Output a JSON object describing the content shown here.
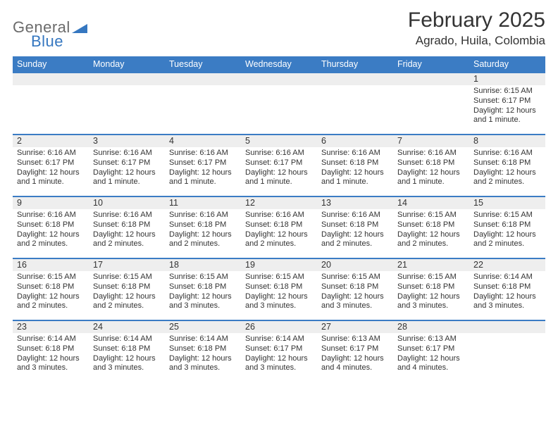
{
  "logo": {
    "word1": "General",
    "word2": "Blue"
  },
  "title": "February 2025",
  "location": "Agrado, Huila, Colombia",
  "colors": {
    "header_bg": "#3b7cc4",
    "header_text": "#ffffff",
    "daynum_bg": "#eeeeee",
    "row_border": "#3b7cc4",
    "logo_gray": "#6b6b6b",
    "logo_blue": "#3577c0",
    "body_text": "#333333",
    "page_bg": "#ffffff"
  },
  "weekdays": [
    "Sunday",
    "Monday",
    "Tuesday",
    "Wednesday",
    "Thursday",
    "Friday",
    "Saturday"
  ],
  "weeks": [
    [
      null,
      null,
      null,
      null,
      null,
      null,
      {
        "n": "1",
        "sunrise": "Sunrise: 6:15 AM",
        "sunset": "Sunset: 6:17 PM",
        "daylight1": "Daylight: 12 hours",
        "daylight2": "and 1 minute."
      }
    ],
    [
      {
        "n": "2",
        "sunrise": "Sunrise: 6:16 AM",
        "sunset": "Sunset: 6:17 PM",
        "daylight1": "Daylight: 12 hours",
        "daylight2": "and 1 minute."
      },
      {
        "n": "3",
        "sunrise": "Sunrise: 6:16 AM",
        "sunset": "Sunset: 6:17 PM",
        "daylight1": "Daylight: 12 hours",
        "daylight2": "and 1 minute."
      },
      {
        "n": "4",
        "sunrise": "Sunrise: 6:16 AM",
        "sunset": "Sunset: 6:17 PM",
        "daylight1": "Daylight: 12 hours",
        "daylight2": "and 1 minute."
      },
      {
        "n": "5",
        "sunrise": "Sunrise: 6:16 AM",
        "sunset": "Sunset: 6:17 PM",
        "daylight1": "Daylight: 12 hours",
        "daylight2": "and 1 minute."
      },
      {
        "n": "6",
        "sunrise": "Sunrise: 6:16 AM",
        "sunset": "Sunset: 6:18 PM",
        "daylight1": "Daylight: 12 hours",
        "daylight2": "and 1 minute."
      },
      {
        "n": "7",
        "sunrise": "Sunrise: 6:16 AM",
        "sunset": "Sunset: 6:18 PM",
        "daylight1": "Daylight: 12 hours",
        "daylight2": "and 1 minute."
      },
      {
        "n": "8",
        "sunrise": "Sunrise: 6:16 AM",
        "sunset": "Sunset: 6:18 PM",
        "daylight1": "Daylight: 12 hours",
        "daylight2": "and 2 minutes."
      }
    ],
    [
      {
        "n": "9",
        "sunrise": "Sunrise: 6:16 AM",
        "sunset": "Sunset: 6:18 PM",
        "daylight1": "Daylight: 12 hours",
        "daylight2": "and 2 minutes."
      },
      {
        "n": "10",
        "sunrise": "Sunrise: 6:16 AM",
        "sunset": "Sunset: 6:18 PM",
        "daylight1": "Daylight: 12 hours",
        "daylight2": "and 2 minutes."
      },
      {
        "n": "11",
        "sunrise": "Sunrise: 6:16 AM",
        "sunset": "Sunset: 6:18 PM",
        "daylight1": "Daylight: 12 hours",
        "daylight2": "and 2 minutes."
      },
      {
        "n": "12",
        "sunrise": "Sunrise: 6:16 AM",
        "sunset": "Sunset: 6:18 PM",
        "daylight1": "Daylight: 12 hours",
        "daylight2": "and 2 minutes."
      },
      {
        "n": "13",
        "sunrise": "Sunrise: 6:16 AM",
        "sunset": "Sunset: 6:18 PM",
        "daylight1": "Daylight: 12 hours",
        "daylight2": "and 2 minutes."
      },
      {
        "n": "14",
        "sunrise": "Sunrise: 6:15 AM",
        "sunset": "Sunset: 6:18 PM",
        "daylight1": "Daylight: 12 hours",
        "daylight2": "and 2 minutes."
      },
      {
        "n": "15",
        "sunrise": "Sunrise: 6:15 AM",
        "sunset": "Sunset: 6:18 PM",
        "daylight1": "Daylight: 12 hours",
        "daylight2": "and 2 minutes."
      }
    ],
    [
      {
        "n": "16",
        "sunrise": "Sunrise: 6:15 AM",
        "sunset": "Sunset: 6:18 PM",
        "daylight1": "Daylight: 12 hours",
        "daylight2": "and 2 minutes."
      },
      {
        "n": "17",
        "sunrise": "Sunrise: 6:15 AM",
        "sunset": "Sunset: 6:18 PM",
        "daylight1": "Daylight: 12 hours",
        "daylight2": "and 2 minutes."
      },
      {
        "n": "18",
        "sunrise": "Sunrise: 6:15 AM",
        "sunset": "Sunset: 6:18 PM",
        "daylight1": "Daylight: 12 hours",
        "daylight2": "and 3 minutes."
      },
      {
        "n": "19",
        "sunrise": "Sunrise: 6:15 AM",
        "sunset": "Sunset: 6:18 PM",
        "daylight1": "Daylight: 12 hours",
        "daylight2": "and 3 minutes."
      },
      {
        "n": "20",
        "sunrise": "Sunrise: 6:15 AM",
        "sunset": "Sunset: 6:18 PM",
        "daylight1": "Daylight: 12 hours",
        "daylight2": "and 3 minutes."
      },
      {
        "n": "21",
        "sunrise": "Sunrise: 6:15 AM",
        "sunset": "Sunset: 6:18 PM",
        "daylight1": "Daylight: 12 hours",
        "daylight2": "and 3 minutes."
      },
      {
        "n": "22",
        "sunrise": "Sunrise: 6:14 AM",
        "sunset": "Sunset: 6:18 PM",
        "daylight1": "Daylight: 12 hours",
        "daylight2": "and 3 minutes."
      }
    ],
    [
      {
        "n": "23",
        "sunrise": "Sunrise: 6:14 AM",
        "sunset": "Sunset: 6:18 PM",
        "daylight1": "Daylight: 12 hours",
        "daylight2": "and 3 minutes."
      },
      {
        "n": "24",
        "sunrise": "Sunrise: 6:14 AM",
        "sunset": "Sunset: 6:18 PM",
        "daylight1": "Daylight: 12 hours",
        "daylight2": "and 3 minutes."
      },
      {
        "n": "25",
        "sunrise": "Sunrise: 6:14 AM",
        "sunset": "Sunset: 6:18 PM",
        "daylight1": "Daylight: 12 hours",
        "daylight2": "and 3 minutes."
      },
      {
        "n": "26",
        "sunrise": "Sunrise: 6:14 AM",
        "sunset": "Sunset: 6:17 PM",
        "daylight1": "Daylight: 12 hours",
        "daylight2": "and 3 minutes."
      },
      {
        "n": "27",
        "sunrise": "Sunrise: 6:13 AM",
        "sunset": "Sunset: 6:17 PM",
        "daylight1": "Daylight: 12 hours",
        "daylight2": "and 4 minutes."
      },
      {
        "n": "28",
        "sunrise": "Sunrise: 6:13 AM",
        "sunset": "Sunset: 6:17 PM",
        "daylight1": "Daylight: 12 hours",
        "daylight2": "and 4 minutes."
      },
      null
    ]
  ]
}
